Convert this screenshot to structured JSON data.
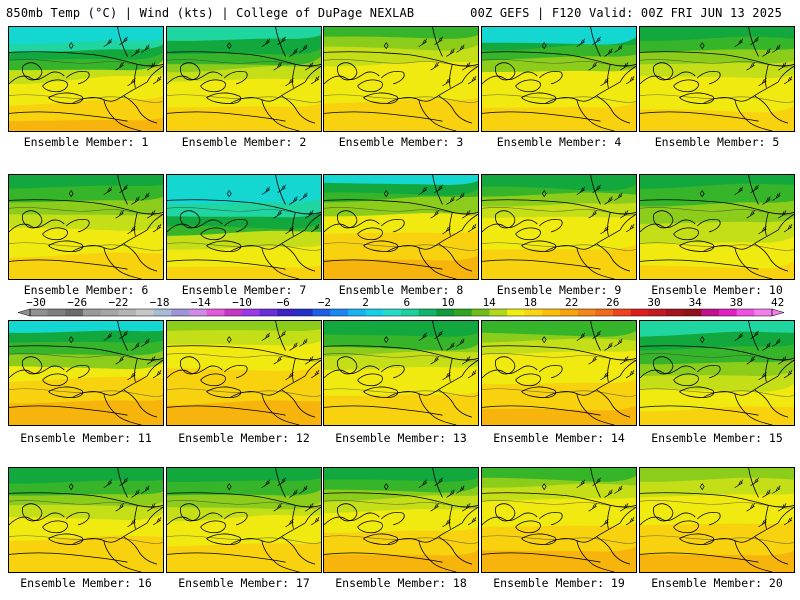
{
  "header": {
    "left_title": "850mb Temp (°C) | Wind (kts) | College of DuPage NEXLAB",
    "right_title": "00Z GEFS | F120 Valid: 00Z FRI JUN 13 2025"
  },
  "panels": [
    {
      "label": "Ensemble Member: 1"
    },
    {
      "label": "Ensemble Member: 2"
    },
    {
      "label": "Ensemble Member: 3"
    },
    {
      "label": "Ensemble Member: 4"
    },
    {
      "label": "Ensemble Member: 5"
    },
    {
      "label": "Ensemble Member: 6"
    },
    {
      "label": "Ensemble Member: 7"
    },
    {
      "label": "Ensemble Member: 8"
    },
    {
      "label": "Ensemble Member: 9"
    },
    {
      "label": "Ensemble Member: 10"
    },
    {
      "label": "Ensemble Member: 11"
    },
    {
      "label": "Ensemble Member: 12"
    },
    {
      "label": "Ensemble Member: 13"
    },
    {
      "label": "Ensemble Member: 14"
    },
    {
      "label": "Ensemble Member: 15"
    },
    {
      "label": "Ensemble Member: 16"
    },
    {
      "label": "Ensemble Member: 17"
    },
    {
      "label": "Ensemble Member: 18"
    },
    {
      "label": "Ensemble Member: 19"
    },
    {
      "label": "Ensemble Member: 20"
    }
  ],
  "colorbar": {
    "tick_labels": [
      "−30",
      "−26",
      "−22",
      "−18",
      "−14",
      "−10",
      "−6",
      "−2",
      "2",
      "6",
      "10",
      "14",
      "18",
      "22",
      "26",
      "30",
      "34",
      "38",
      "42"
    ],
    "colors": [
      "#909090",
      "#7f7f7f",
      "#6b6b6b",
      "#9a9a9a",
      "#a6a6a6",
      "#b4b4b4",
      "#c7c7c7",
      "#a8bbd6",
      "#9c95d6",
      "#d08be6",
      "#e25ad9",
      "#c437c4",
      "#9a39ea",
      "#6a2fd6",
      "#3d23c4",
      "#2332c8",
      "#1f5ee6",
      "#1c86f2",
      "#18b3f2",
      "#17cfe6",
      "#22dcc8",
      "#1fcf9d",
      "#10b46b",
      "#0f9a3c",
      "#2fa521",
      "#6ebd1a",
      "#b1d81b",
      "#f0ee11",
      "#f8d612",
      "#fbbf0a",
      "#f7a40e",
      "#f38519",
      "#ef6a1a",
      "#ee431c",
      "#dc1c1f",
      "#c11a22",
      "#a4141e",
      "#90121b",
      "#c2128f",
      "#e31fc3",
      "#f050e3",
      "#f47fec"
    ]
  }
}
